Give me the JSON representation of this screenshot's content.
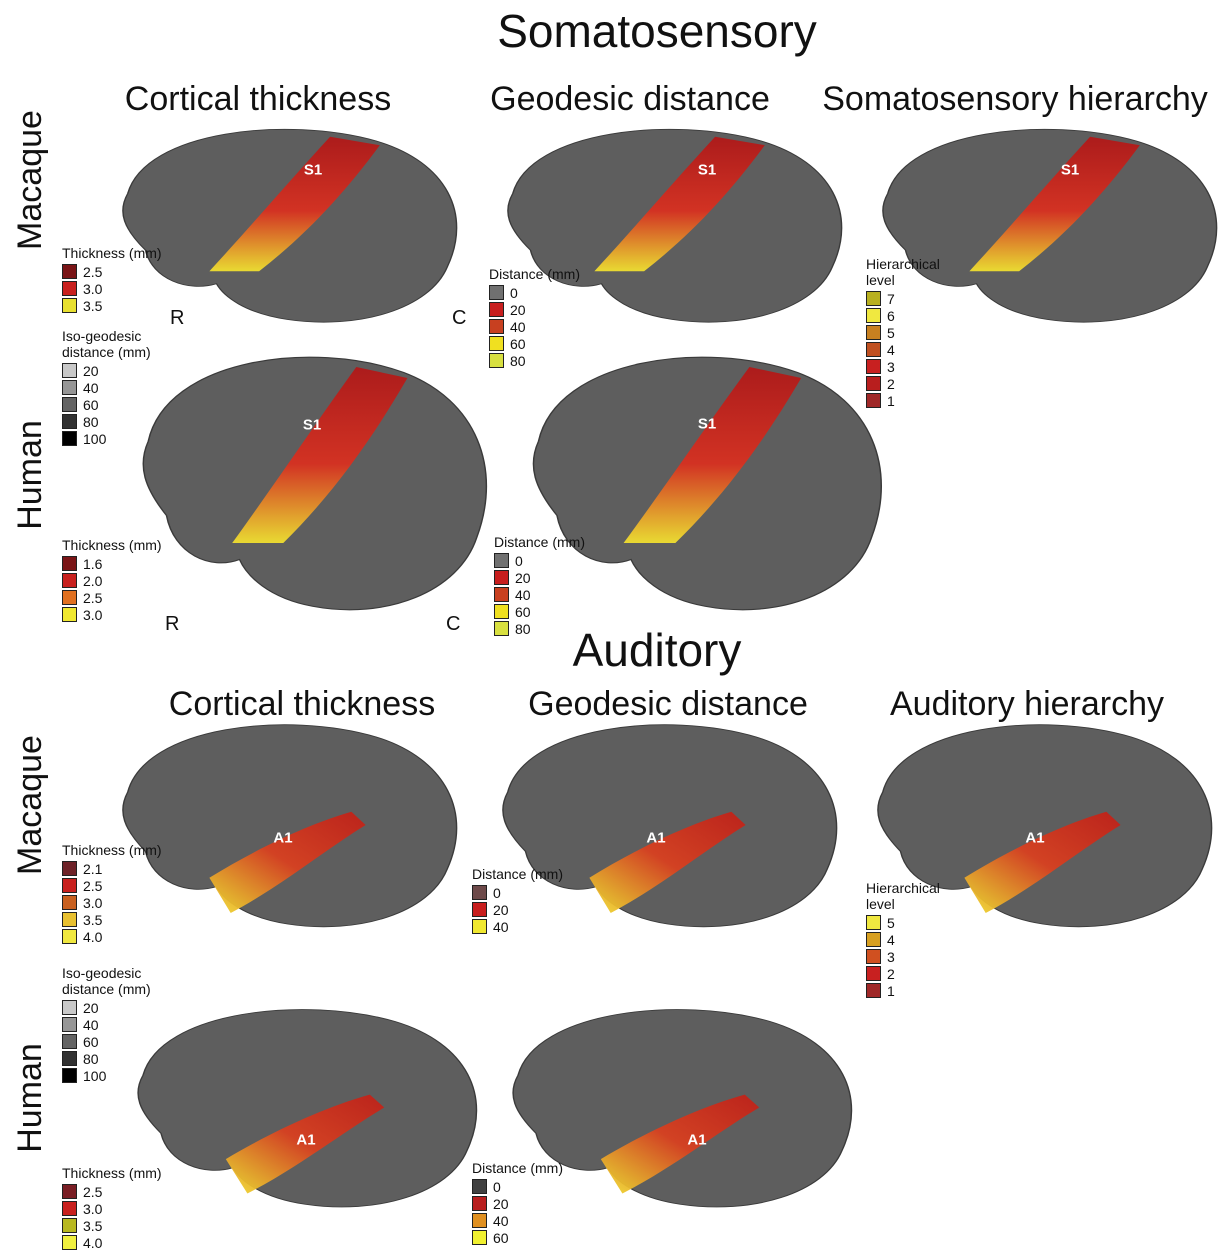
{
  "sections": [
    {
      "title": "Somatosensory",
      "columns": [
        "Cortical thickness",
        "Geodesic distance",
        "Somatosensory hierarchy"
      ],
      "rows": [
        "Macaque",
        "Human"
      ],
      "panels": [
        {
          "label": "S1",
          "side_labels": [
            "R",
            "C"
          ],
          "legends": [
            {
              "title": "Thickness (mm)",
              "items": [
                {
                  "label": "2.5",
                  "color": "#7a1416"
                },
                {
                  "label": "3.0",
                  "color": "#c8201e"
                },
                {
                  "label": "3.5",
                  "color": "#e8e030"
                }
              ]
            },
            {
              "title": "Iso-geodesic distance (mm)",
              "items": [
                {
                  "label": "20",
                  "color": "#c8c8c8"
                },
                {
                  "label": "40",
                  "color": "#969696"
                },
                {
                  "label": "60",
                  "color": "#646464"
                },
                {
                  "label": "80",
                  "color": "#323232"
                },
                {
                  "label": "100",
                  "color": "#000000"
                }
              ]
            }
          ]
        },
        {
          "label": "S1",
          "legends": [
            {
              "title": "Distance (mm)",
              "items": [
                {
                  "label": "0",
                  "color": "#707070"
                },
                {
                  "label": "20",
                  "color": "#c81e1e"
                },
                {
                  "label": "40",
                  "color": "#c84020"
                },
                {
                  "label": "60",
                  "color": "#f0e020"
                },
                {
                  "label": "80",
                  "color": "#d8e040"
                }
              ]
            }
          ]
        },
        {
          "label": "S1",
          "legends": [
            {
              "title": "Hierarchical level",
              "items": [
                {
                  "label": "7",
                  "color": "#b8b020"
                },
                {
                  "label": "6",
                  "color": "#f0e840"
                },
                {
                  "label": "5",
                  "color": "#c88020"
                },
                {
                  "label": "4",
                  "color": "#c05020"
                },
                {
                  "label": "3",
                  "color": "#c82020"
                },
                {
                  "label": "2",
                  "color": "#b81e1e"
                },
                {
                  "label": "1",
                  "color": "#a02828"
                }
              ]
            }
          ]
        },
        {
          "label": "S1",
          "side_labels": [
            "R",
            "C"
          ],
          "legends": [
            {
              "title": "Thickness (mm)",
              "items": [
                {
                  "label": "1.6",
                  "color": "#7a1416"
                },
                {
                  "label": "2.0",
                  "color": "#c8201e"
                },
                {
                  "label": "2.5",
                  "color": "#e07020"
                },
                {
                  "label": "3.0",
                  "color": "#f0e830"
                }
              ]
            }
          ]
        },
        {
          "label": "S1",
          "legends": [
            {
              "title": "Distance (mm)",
              "items": [
                {
                  "label": "0",
                  "color": "#707070"
                },
                {
                  "label": "20",
                  "color": "#c81e1e"
                },
                {
                  "label": "40",
                  "color": "#c84020"
                },
                {
                  "label": "60",
                  "color": "#f0e020"
                },
                {
                  "label": "80",
                  "color": "#d8e040"
                }
              ]
            }
          ]
        }
      ]
    },
    {
      "title": "Auditory",
      "columns": [
        "Cortical thickness",
        "Geodesic distance",
        "Auditory hierarchy"
      ],
      "rows": [
        "Macaque",
        "Human"
      ],
      "panels": [
        {
          "label": "A1",
          "legends": [
            {
              "title": "Thickness (mm)",
              "items": [
                {
                  "label": "2.1",
                  "color": "#6e2228"
                },
                {
                  "label": "2.5",
                  "color": "#c8201e"
                },
                {
                  "label": "3.0",
                  "color": "#c86020"
                },
                {
                  "label": "3.5",
                  "color": "#e8c030"
                },
                {
                  "label": "4.0",
                  "color": "#f0e840"
                }
              ]
            },
            {
              "title": "Iso-geodesic distance (mm)",
              "items": [
                {
                  "label": "20",
                  "color": "#c8c8c8"
                },
                {
                  "label": "40",
                  "color": "#969696"
                },
                {
                  "label": "60",
                  "color": "#646464"
                },
                {
                  "label": "80",
                  "color": "#323232"
                },
                {
                  "label": "100",
                  "color": "#000000"
                }
              ]
            }
          ]
        },
        {
          "label": "A1",
          "legends": [
            {
              "title": "Distance (mm)",
              "items": [
                {
                  "label": "0",
                  "color": "#6e4a4a"
                },
                {
                  "label": "20",
                  "color": "#c81e1e"
                },
                {
                  "label": "40",
                  "color": "#f0e830"
                }
              ]
            }
          ]
        },
        {
          "label": "A1",
          "legends": [
            {
              "title": "Hierarchical level",
              "items": [
                {
                  "label": "5",
                  "color": "#f0e840"
                },
                {
                  "label": "4",
                  "color": "#d8a020"
                },
                {
                  "label": "3",
                  "color": "#d05020"
                },
                {
                  "label": "2",
                  "color": "#c82020"
                },
                {
                  "label": "1",
                  "color": "#a02828"
                }
              ]
            }
          ]
        },
        {
          "label": "A1",
          "legends": [
            {
              "title": "Thickness (mm)",
              "items": [
                {
                  "label": "2.5",
                  "color": "#7a1e24"
                },
                {
                  "label": "3.0",
                  "color": "#c8201e"
                },
                {
                  "label": "3.5",
                  "color": "#b8b820"
                },
                {
                  "label": "4.0",
                  "color": "#f0f040"
                }
              ]
            }
          ]
        },
        {
          "label": "A1",
          "legends": [
            {
              "title": "Distance (mm)",
              "items": [
                {
                  "label": "0",
                  "color": "#404040"
                },
                {
                  "label": "20",
                  "color": "#b81e1e"
                },
                {
                  "label": "40",
                  "color": "#e09020"
                },
                {
                  "label": "60",
                  "color": "#f0f030"
                }
              ]
            }
          ]
        }
      ]
    }
  ]
}
